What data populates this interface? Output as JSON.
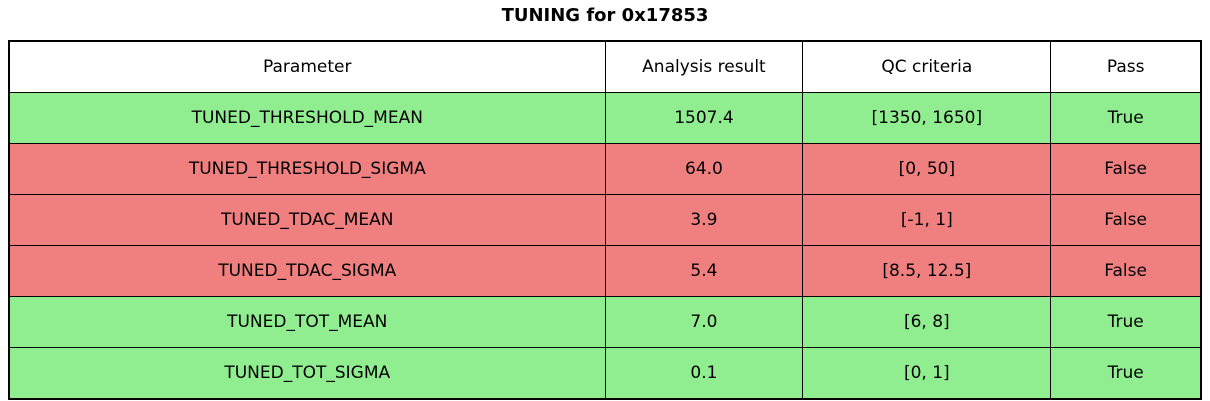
{
  "title": "TUNING for 0x17853",
  "colors": {
    "pass_bg": "#90ee90",
    "fail_bg": "#f08080",
    "header_bg": "#ffffff",
    "border": "#000000",
    "text": "#000000"
  },
  "chart_data": {
    "type": "table",
    "title": "TUNING for 0x17853",
    "columns": [
      "Parameter",
      "Analysis result",
      "QC criteria",
      "Pass"
    ],
    "rows": [
      [
        "TUNED_THRESHOLD_MEAN",
        "1507.4",
        "[1350, 1650]",
        "True"
      ],
      [
        "TUNED_THRESHOLD_SIGMA",
        "64.0",
        "[0, 50]",
        "False"
      ],
      [
        "TUNED_TDAC_MEAN",
        "3.9",
        "[-1, 1]",
        "False"
      ],
      [
        "TUNED_TDAC_SIGMA",
        "5.4",
        "[8.5, 12.5]",
        "False"
      ],
      [
        "TUNED_TOT_MEAN",
        "7.0",
        "[6, 8]",
        "True"
      ],
      [
        "TUNED_TOT_SIGMA",
        "0.1",
        "[0, 1]",
        "True"
      ]
    ],
    "row_status": [
      "pass",
      "fail",
      "fail",
      "fail",
      "pass",
      "pass"
    ],
    "legend_position": "none",
    "grid": true
  }
}
